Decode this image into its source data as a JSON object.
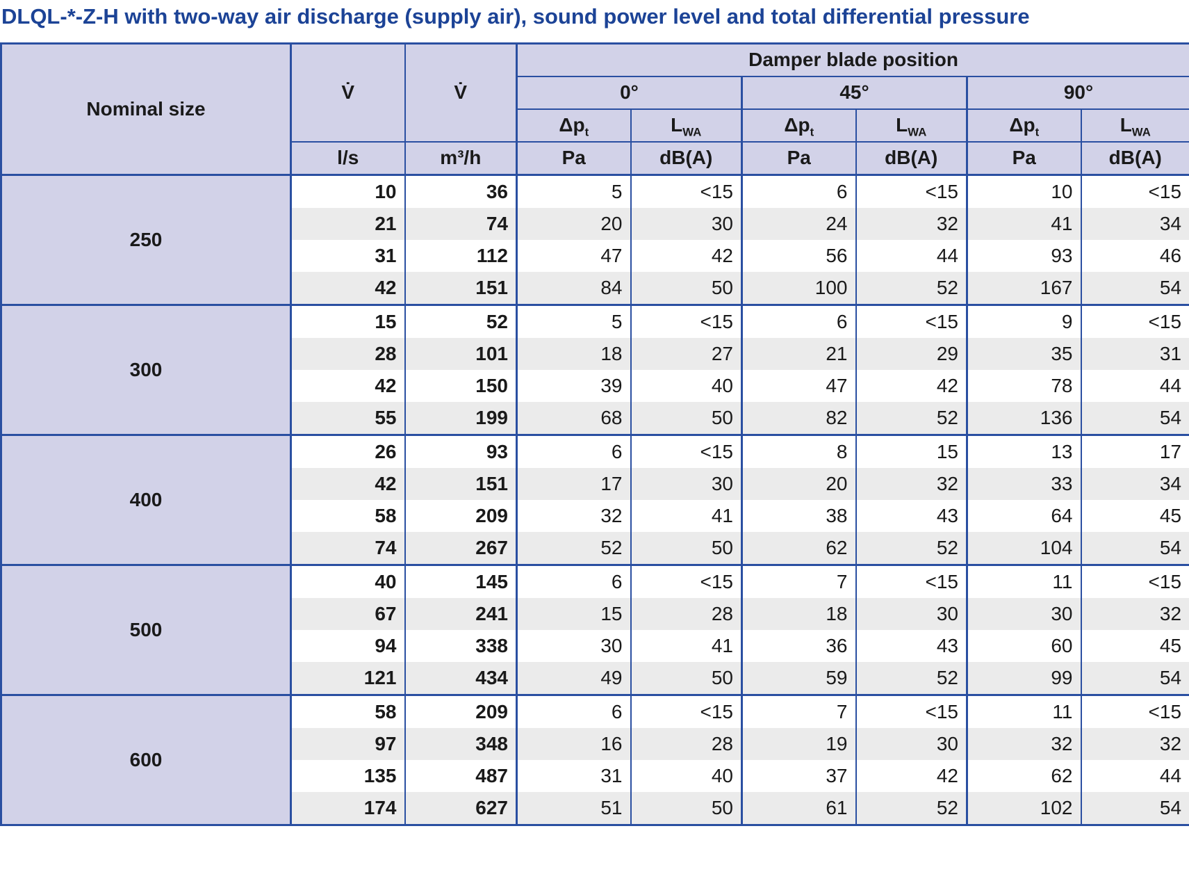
{
  "title": "DLQL-*-Z-H with two-way air discharge (supply air), sound power level and total differential pressure",
  "colors": {
    "title_blue": "#1c4396",
    "grid_blue": "#2a4fa1",
    "header_fill": "#d2d2e8",
    "row_alt_gray": "#ebebeb",
    "text": "#1a1a1a"
  },
  "table": {
    "header": {
      "nominal_size": "Nominal size",
      "vdot": "V̇",
      "damper": "Damper blade position",
      "angles": [
        "0°",
        "45°",
        "90°"
      ],
      "dp": {
        "base": "Δp",
        "sub": "t"
      },
      "lwa": {
        "base": "L",
        "sub": "WA"
      },
      "units": {
        "ls": "l/s",
        "m3h": "m³/h",
        "pa": "Pa",
        "dba": "dB(A)"
      }
    },
    "sections": [
      {
        "size": "250",
        "rows": [
          [
            "10",
            "36",
            "5",
            "<15",
            "6",
            "<15",
            "10",
            "<15"
          ],
          [
            "21",
            "74",
            "20",
            "30",
            "24",
            "32",
            "41",
            "34"
          ],
          [
            "31",
            "112",
            "47",
            "42",
            "56",
            "44",
            "93",
            "46"
          ],
          [
            "42",
            "151",
            "84",
            "50",
            "100",
            "52",
            "167",
            "54"
          ]
        ]
      },
      {
        "size": "300",
        "rows": [
          [
            "15",
            "52",
            "5",
            "<15",
            "6",
            "<15",
            "9",
            "<15"
          ],
          [
            "28",
            "101",
            "18",
            "27",
            "21",
            "29",
            "35",
            "31"
          ],
          [
            "42",
            "150",
            "39",
            "40",
            "47",
            "42",
            "78",
            "44"
          ],
          [
            "55",
            "199",
            "68",
            "50",
            "82",
            "52",
            "136",
            "54"
          ]
        ]
      },
      {
        "size": "400",
        "rows": [
          [
            "26",
            "93",
            "6",
            "<15",
            "8",
            "15",
            "13",
            "17"
          ],
          [
            "42",
            "151",
            "17",
            "30",
            "20",
            "32",
            "33",
            "34"
          ],
          [
            "58",
            "209",
            "32",
            "41",
            "38",
            "43",
            "64",
            "45"
          ],
          [
            "74",
            "267",
            "52",
            "50",
            "62",
            "52",
            "104",
            "54"
          ]
        ]
      },
      {
        "size": "500",
        "rows": [
          [
            "40",
            "145",
            "6",
            "<15",
            "7",
            "<15",
            "11",
            "<15"
          ],
          [
            "67",
            "241",
            "15",
            "28",
            "18",
            "30",
            "30",
            "32"
          ],
          [
            "94",
            "338",
            "30",
            "41",
            "36",
            "43",
            "60",
            "45"
          ],
          [
            "121",
            "434",
            "49",
            "50",
            "59",
            "52",
            "99",
            "54"
          ]
        ]
      },
      {
        "size": "600",
        "rows": [
          [
            "58",
            "209",
            "6",
            "<15",
            "7",
            "<15",
            "11",
            "<15"
          ],
          [
            "97",
            "348",
            "16",
            "28",
            "19",
            "30",
            "32",
            "32"
          ],
          [
            "135",
            "487",
            "31",
            "40",
            "37",
            "42",
            "62",
            "44"
          ],
          [
            "174",
            "627",
            "51",
            "50",
            "61",
            "52",
            "102",
            "54"
          ]
        ]
      }
    ]
  }
}
